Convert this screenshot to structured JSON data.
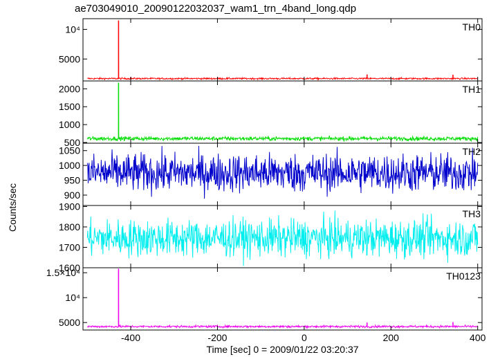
{
  "chart_data": {
    "type": "line",
    "title": "ae703049010_20090122032037_wam1_trn_4band_long.qdp",
    "ylabel": "Counts/sec",
    "xlabel": "Time [sec] 0 = 2009/01/22 03:20:37",
    "xlim": [
      -510,
      410
    ],
    "xticks": [
      -400,
      -200,
      0,
      200,
      400
    ],
    "panels": [
      {
        "name": "TH0",
        "color": "#ff0000",
        "ylim": [
          1300,
          11800
        ],
        "yticks": [
          {
            "v": 5000,
            "label": "5000"
          },
          {
            "v": 10000,
            "label": "10⁴"
          }
        ],
        "base": 1700,
        "noise": 70,
        "spikes": [
          {
            "x": -428,
            "y": 11500
          },
          {
            "x": 145,
            "y": 2400
          },
          {
            "x": 343,
            "y": 2350
          }
        ]
      },
      {
        "name": "TH1",
        "color": "#00dd00",
        "ylim": [
          480,
          2220
        ],
        "yticks": [
          {
            "v": 500,
            "label": "500"
          },
          {
            "v": 1000,
            "label": "1000"
          },
          {
            "v": 1500,
            "label": "1500"
          },
          {
            "v": 2000,
            "label": "2000"
          }
        ],
        "base": 610,
        "noise": 28,
        "spikes": [
          {
            "x": -428,
            "y": 2170
          }
        ]
      },
      {
        "name": "TH2",
        "color": "#0000cc",
        "ylim": [
          865,
          1075
        ],
        "yticks": [
          {
            "v": 900,
            "label": "900"
          },
          {
            "v": 950,
            "label": "950"
          },
          {
            "v": 1000,
            "label": "1000"
          },
          {
            "v": 1050,
            "label": "1050"
          }
        ],
        "base": 975,
        "noise": 32,
        "spikes": []
      },
      {
        "name": "TH3",
        "color": "#00eeee",
        "ylim": [
          1600,
          1905
        ],
        "yticks": [
          {
            "v": 1600,
            "label": "1600"
          },
          {
            "v": 1700,
            "label": "1700"
          },
          {
            "v": 1800,
            "label": "1800"
          },
          {
            "v": 1900,
            "label": "1900"
          }
        ],
        "base": 1745,
        "noise": 45,
        "spikes": []
      },
      {
        "name": "TH0123",
        "color": "#ee00ee",
        "ylim": [
          3500,
          16000
        ],
        "yticks": [
          {
            "v": 5000,
            "label": "5000"
          },
          {
            "v": 10000,
            "label": "10⁴"
          },
          {
            "v": 15000,
            "label": "1.5×10⁴"
          }
        ],
        "base": 4200,
        "noise": 110,
        "spikes": [
          {
            "x": -428,
            "y": 15800
          },
          {
            "x": 145,
            "y": 5000
          },
          {
            "x": 343,
            "y": 5100
          }
        ]
      }
    ]
  }
}
